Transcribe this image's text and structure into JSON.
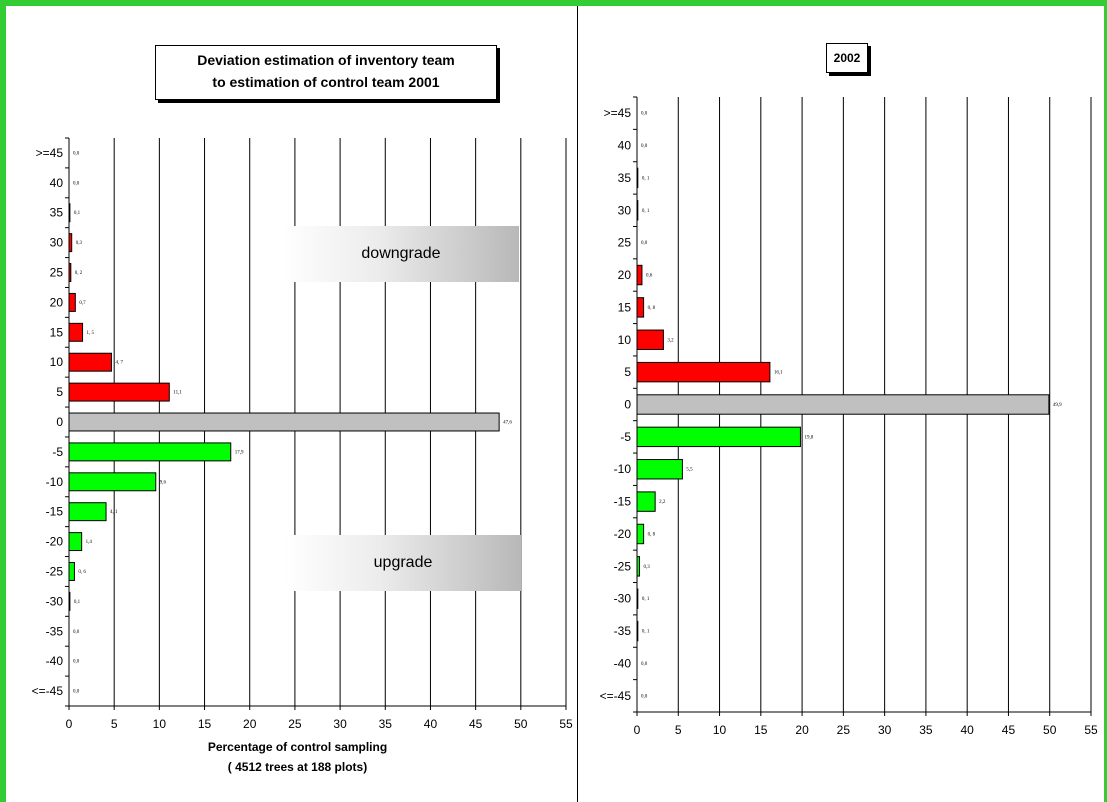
{
  "chart_data": [
    {
      "type": "bar",
      "orientation": "horizontal",
      "title": "Deviation estimation of inventory team to estimation of control team 2001",
      "title_lines": [
        "Deviation estimation of inventory team",
        "to estimation of control team 2001"
      ],
      "xlabel": "Percentage of control sampling",
      "xlabel_sub": "( 4512 trees at 188 plots)",
      "categories": [
        ">=45",
        "40",
        "35",
        "30",
        "25",
        "20",
        "15",
        "10",
        "5",
        "0",
        "-5",
        "-10",
        "-15",
        "-20",
        "-25",
        "-30",
        "-35",
        "-40",
        "<=-45"
      ],
      "values": [
        0.0,
        0.0,
        0.1,
        0.3,
        0.2,
        0.7,
        1.5,
        4.7,
        11.1,
        47.6,
        17.9,
        9.6,
        4.1,
        1.4,
        0.6,
        0.1,
        0.0,
        0.0,
        0.0
      ],
      "value_labels": [
        "0,0",
        "0,0",
        "0,1",
        "0,3",
        "0, 2",
        "0,7",
        "1, 5",
        "4, 7",
        "11,1",
        "47,6",
        "17,9",
        "9,6",
        "4, 1",
        "1,4",
        "0, 6",
        "0,1",
        "0,0",
        "0,0",
        "0,0"
      ],
      "xlim": [
        0,
        55
      ],
      "xticks": [
        "0",
        "5",
        "10",
        "15",
        "20",
        "25",
        "30",
        "35",
        "40",
        "45",
        "50",
        "55"
      ],
      "grid": "vertical",
      "annotations": [
        "downgrade",
        "upgrade"
      ],
      "colors": {
        "positive": "#ff0000",
        "zero": "#c0c0c0",
        "negative": "#00ff00"
      }
    },
    {
      "type": "bar",
      "orientation": "horizontal",
      "title": "2002",
      "categories": [
        ">=45",
        "40",
        "35",
        "30",
        "25",
        "20",
        "15",
        "10",
        "5",
        "0",
        "-5",
        "-10",
        "-15",
        "-20",
        "-25",
        "-30",
        "-35",
        "-40",
        "<=-45"
      ],
      "values": [
        0.0,
        0.0,
        0.1,
        0.1,
        0.0,
        0.6,
        0.8,
        3.2,
        16.1,
        49.9,
        19.8,
        5.5,
        2.2,
        0.8,
        0.3,
        0.1,
        0.1,
        0.0,
        0.0
      ],
      "value_labels": [
        "0,0",
        "0,0",
        "0, 1",
        "0, 1",
        "0,0",
        "0,6",
        "0, 8",
        "3,2",
        "16,1",
        "49,9",
        "19,8",
        "5,5",
        "2,2",
        "0, 8",
        "0,3",
        "0, 1",
        "0, 1",
        "0,0",
        "0,0"
      ],
      "xlim": [
        0,
        55
      ],
      "xticks": [
        "0",
        "5",
        "10",
        "15",
        "20",
        "25",
        "30",
        "35",
        "40",
        "45",
        "50",
        "55"
      ],
      "grid": "vertical",
      "colors": {
        "positive": "#ff0000",
        "zero": "#c0c0c0",
        "negative": "#00ff00"
      }
    }
  ]
}
